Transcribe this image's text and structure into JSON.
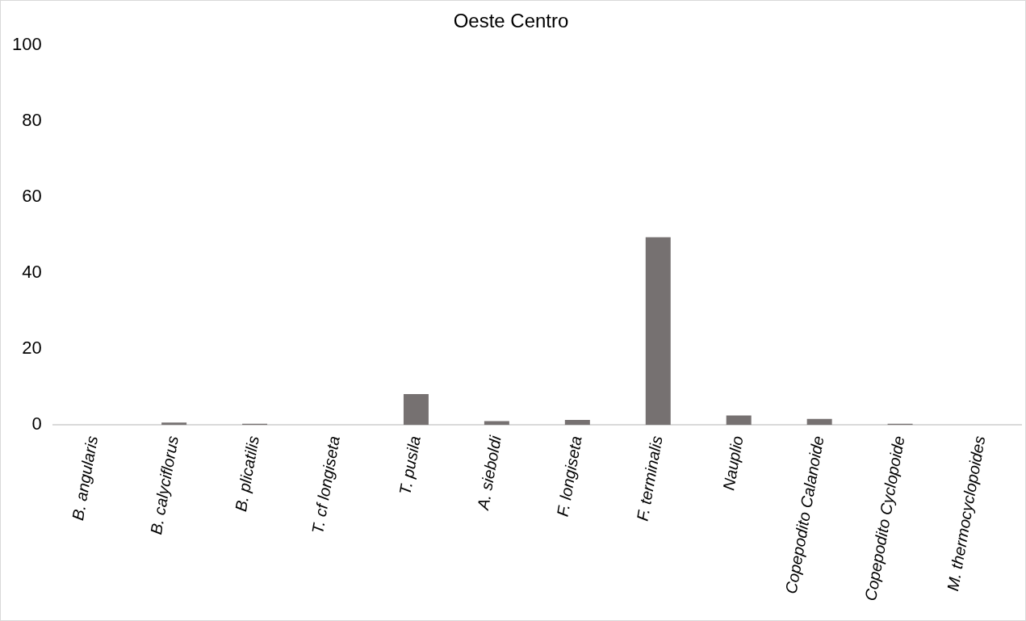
{
  "chart_data": {
    "type": "bar",
    "title": "Oeste Centro",
    "categories": [
      "B. angularis",
      "B. calyciflorus",
      "B. plicatilis",
      "T. cf longiseta",
      "T. pusila",
      "A. sieboldi",
      "F. longiseta",
      "F. terminalis",
      "Nauplio",
      "Copepodito Calanoide",
      "Copepodito Cyclopoide",
      "M. thermocyclopoides"
    ],
    "values": [
      0,
      0.6,
      0.3,
      0,
      8.1,
      1.0,
      1.3,
      49.4,
      2.5,
      1.6,
      0.3,
      0
    ],
    "color": "#767171",
    "ylim": [
      0,
      100
    ],
    "yticks": [
      0,
      20,
      40,
      60,
      80,
      100
    ],
    "grid": false,
    "legend": false
  }
}
